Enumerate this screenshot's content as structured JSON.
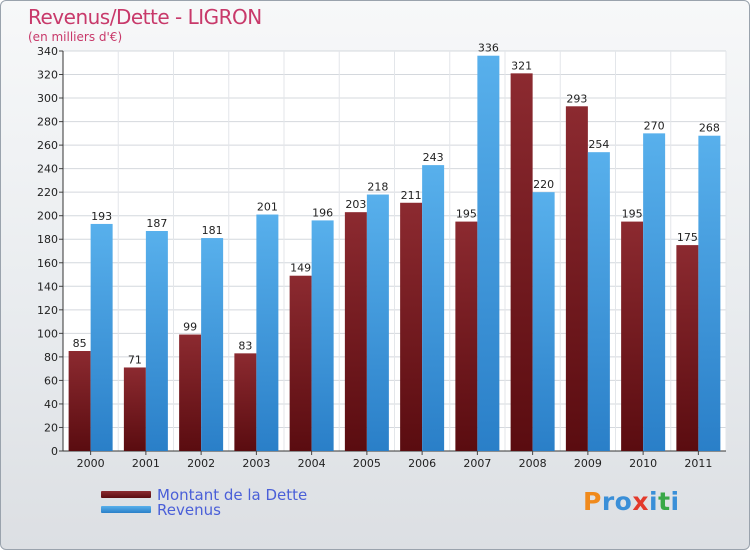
{
  "chart_data": {
    "type": "bar",
    "title": "Revenus/Dette - LIGRON",
    "subtitle": "(en milliers d'€)",
    "categories": [
      "2000",
      "2001",
      "2002",
      "2003",
      "2004",
      "2005",
      "2006",
      "2007",
      "2008",
      "2009",
      "2010",
      "2011"
    ],
    "series": [
      {
        "name": "Montant de la Dette",
        "color": "#7a1e22",
        "values": [
          85,
          71,
          99,
          83,
          149,
          203,
          211,
          195,
          321,
          293,
          195,
          175
        ]
      },
      {
        "name": "Revenus",
        "color": "#3a99e0",
        "values": [
          193,
          187,
          181,
          201,
          196,
          218,
          243,
          336,
          220,
          254,
          270,
          268
        ]
      }
    ],
    "ylim": [
      0,
      340
    ],
    "yticks": [
      0,
      20,
      40,
      60,
      80,
      100,
      120,
      140,
      160,
      180,
      200,
      220,
      240,
      260,
      280,
      300,
      320,
      340
    ],
    "grid": true,
    "legend_position": "bottom-left"
  },
  "logo": {
    "letters": [
      "P",
      "r",
      "o",
      "x",
      "i",
      "t",
      "i"
    ],
    "colors": [
      "#f08a1c",
      "#3a8fd8",
      "#3a8fd8",
      "#e33a2c",
      "#3a8fd8",
      "#3aa848",
      "#3a8fd8"
    ]
  }
}
